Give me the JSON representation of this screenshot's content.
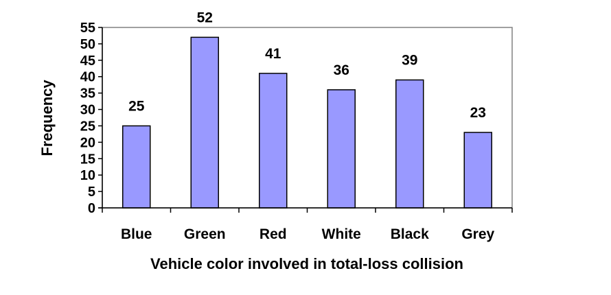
{
  "chart_data": {
    "type": "bar",
    "title": "",
    "xlabel": "Vehicle color involved in total-loss collision",
    "ylabel": "Frequency",
    "categories": [
      "Blue",
      "Green",
      "Red",
      "White",
      "Black",
      "Grey"
    ],
    "values": [
      25,
      52,
      41,
      36,
      39,
      23
    ],
    "ylim": [
      0,
      55
    ],
    "yticks": [
      0,
      5,
      10,
      15,
      20,
      25,
      30,
      35,
      40,
      45,
      50,
      55
    ],
    "grid": false,
    "legend": "none",
    "data_labels": true,
    "colors": {
      "bar_fill": "#9999ff",
      "bar_stroke": "#000000",
      "plot_border": "#808080",
      "axis": "#000000"
    }
  }
}
